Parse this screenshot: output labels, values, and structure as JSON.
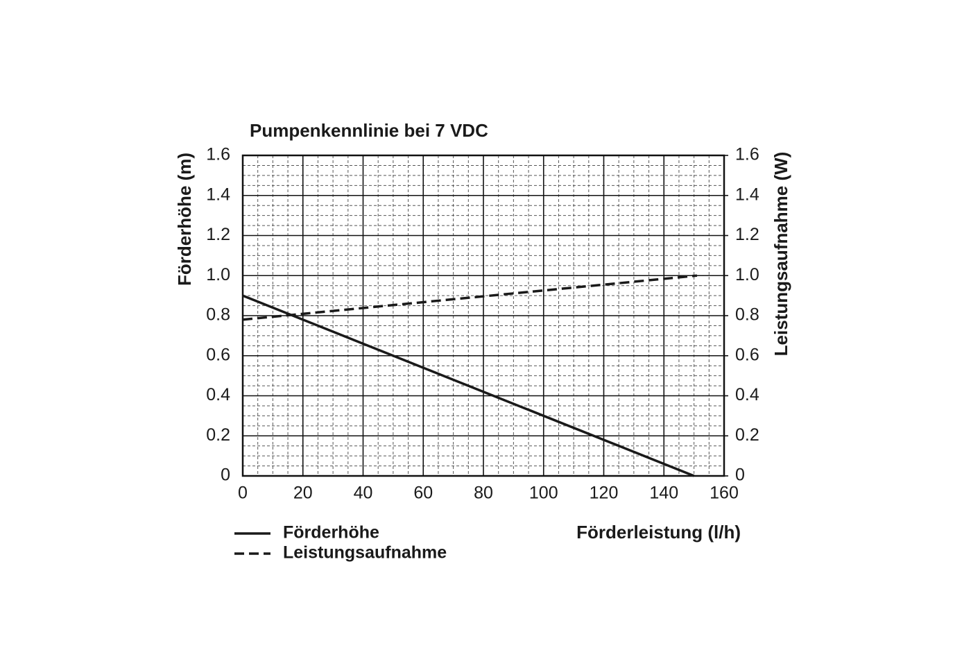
{
  "chart_data": {
    "type": "line",
    "title": "Pumpenkennlinie bei 7 VDC",
    "xlabel": "Förderleistung (l/h)",
    "ylabel": "Förderhöhe (m)",
    "y2label": "Leistungsaufnahme (W)",
    "xlim": [
      0,
      160
    ],
    "xticks": [
      0,
      20,
      40,
      60,
      80,
      100,
      120,
      140,
      160
    ],
    "ylim": [
      0,
      1.6
    ],
    "yticks": [
      0,
      0.2,
      0.4,
      0.6,
      0.8,
      {
        "value": 1,
        "label": "1.0"
      },
      1.2,
      1.4,
      1.6
    ],
    "y2lim": [
      0,
      1.6
    ],
    "y2ticks": [
      0,
      0.2,
      0.4,
      0.6,
      0.8,
      {
        "value": 1,
        "label": "1.0"
      },
      1.2,
      1.4,
      1.6
    ],
    "grid": true,
    "minor_xstep": 5,
    "minor_ystep": 0.05,
    "series": [
      {
        "name": "Förderhöhe",
        "color": "#1a1a1a",
        "style": "solid",
        "x": [
          0,
          150
        ],
        "values": [
          0.9,
          0
        ]
      },
      {
        "name": "Leistungsaufnahme",
        "color": "#1a1a1a",
        "style": "dashed",
        "axis": "y2",
        "x": [
          0,
          151
        ],
        "values": [
          0.78,
          1.0
        ]
      }
    ]
  }
}
